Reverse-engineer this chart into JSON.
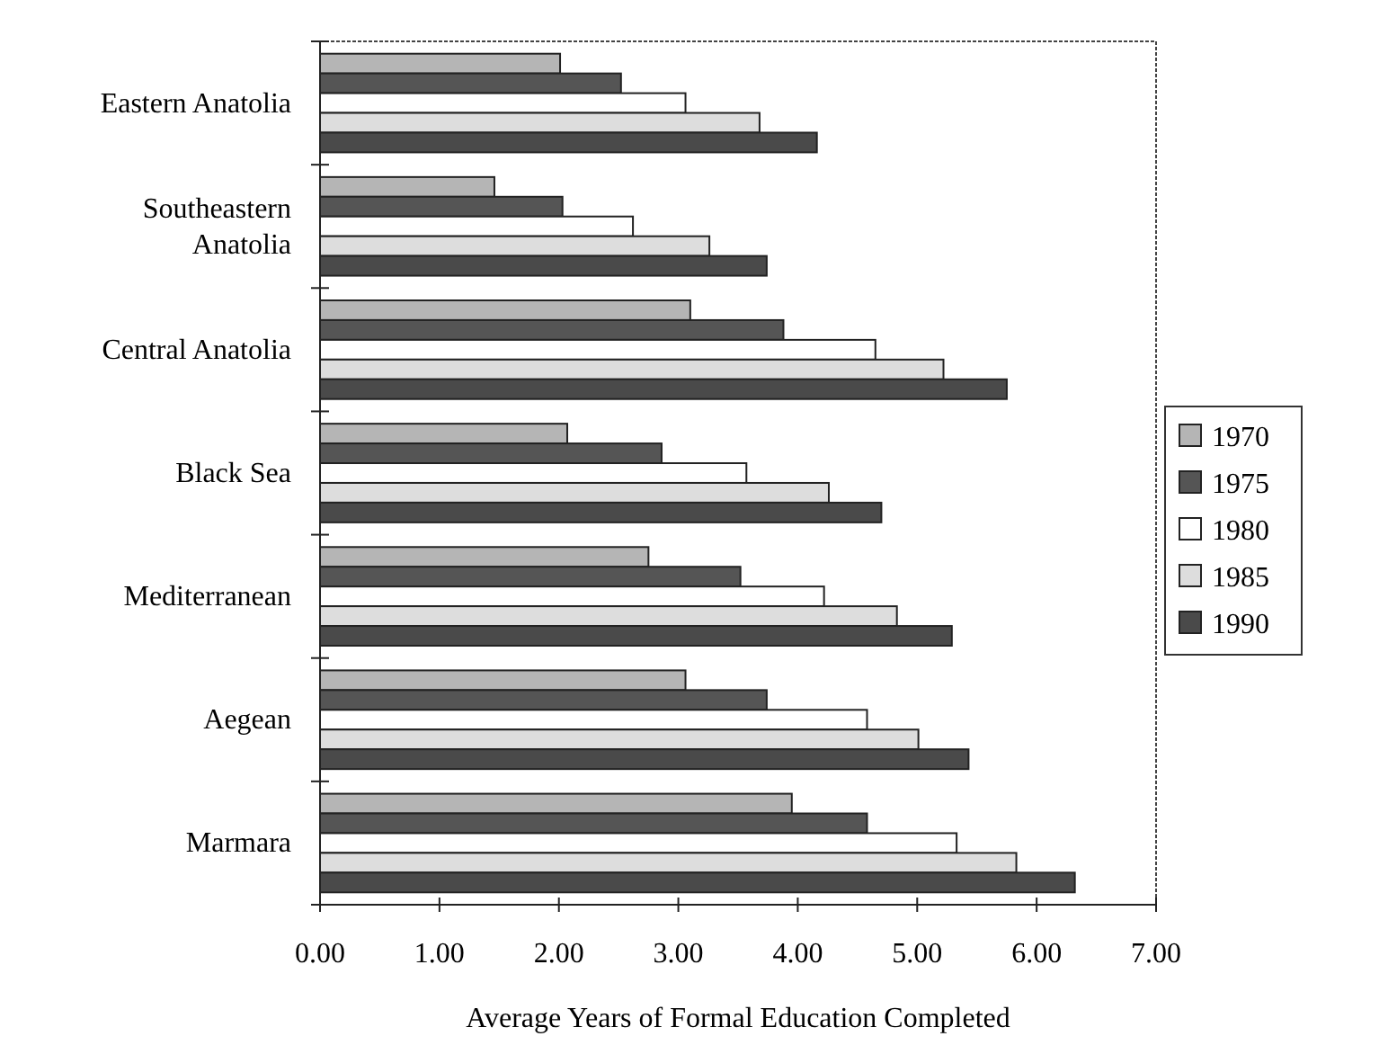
{
  "chart_data": {
    "type": "bar",
    "orientation": "horizontal",
    "xlabel": "Average Years of Formal Education Completed",
    "categories": [
      "Eastern Anatolia",
      "Southeastern Anatolia",
      "Central Anatolia",
      "Black Sea",
      "Mediterranean",
      "Aegean",
      "Marmara"
    ],
    "series": [
      {
        "name": "1970",
        "color": "#b5b5b5",
        "values": [
          2.01,
          1.46,
          3.1,
          2.07,
          2.75,
          3.06,
          3.95
        ]
      },
      {
        "name": "1975",
        "color": "#555555",
        "values": [
          2.52,
          2.03,
          3.88,
          2.86,
          3.52,
          3.74,
          4.58
        ]
      },
      {
        "name": "1980",
        "color": "#ffffff",
        "values": [
          3.06,
          2.62,
          4.65,
          3.57,
          4.22,
          4.58,
          5.33
        ]
      },
      {
        "name": "1985",
        "color": "#dddddd",
        "values": [
          3.68,
          3.26,
          5.22,
          4.26,
          4.83,
          5.01,
          5.83
        ]
      },
      {
        "name": "1990",
        "color": "#4a4a4a",
        "values": [
          4.16,
          3.74,
          5.75,
          4.7,
          5.29,
          5.43,
          6.32
        ]
      }
    ],
    "xlim": [
      0,
      7
    ],
    "xticks": [
      {
        "value": 0,
        "label": "0.00"
      },
      {
        "value": 1,
        "label": "1.00"
      },
      {
        "value": 2,
        "label": "2.00"
      },
      {
        "value": 3,
        "label": "3.00"
      },
      {
        "value": 4,
        "label": "4.00"
      },
      {
        "value": 5,
        "label": "5.00"
      },
      {
        "value": 6,
        "label": "6.00"
      },
      {
        "value": 7,
        "label": "7.00"
      }
    ],
    "legend": "right",
    "grid": false
  }
}
